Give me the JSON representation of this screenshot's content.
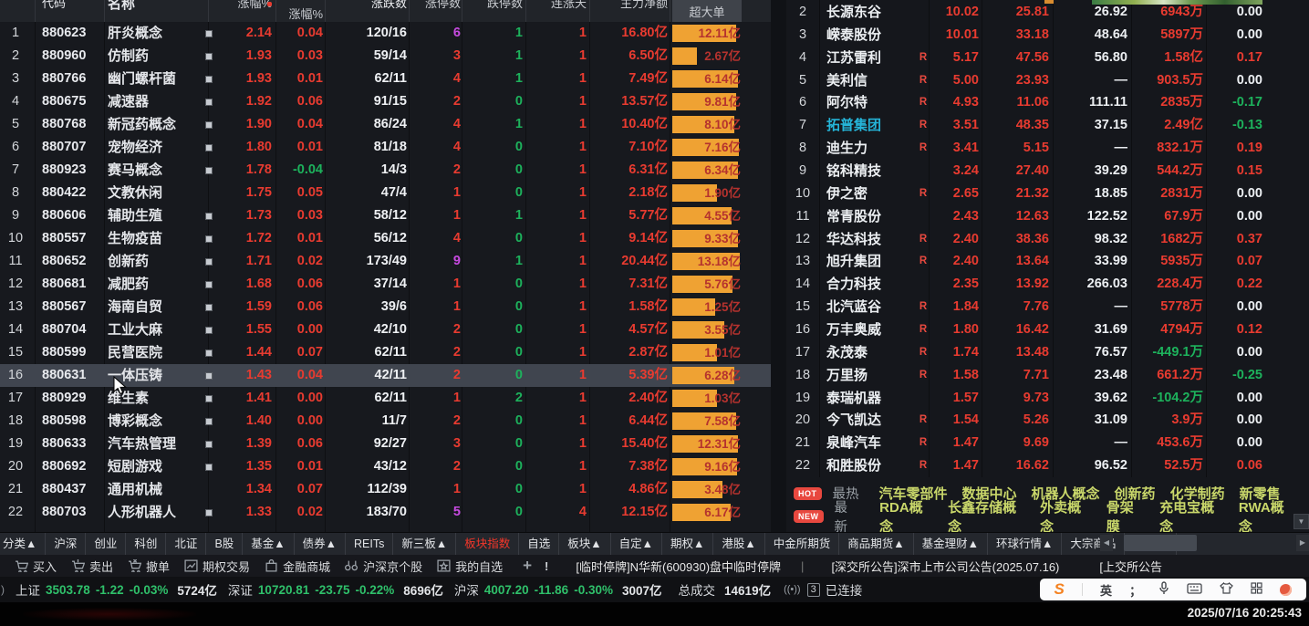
{
  "colors": {
    "red": "#e83b30",
    "green": "#1db25c",
    "purple": "#c74ae0",
    "cyan": "#25b4d8",
    "bar_orange": "#efa233",
    "tab_active": "#f5372a",
    "hot_link": "#c9d76a"
  },
  "left_table": {
    "headers": [
      {
        "label": "代码",
        "cls": "lc-code",
        "cut": true
      },
      {
        "label": "名称",
        "cls": "lc-name",
        "cut": true
      },
      {
        "label": "涨幅%",
        "cls": "lc-p1",
        "cut": true,
        "dot": true
      },
      {
        "label": "涨幅%",
        "cls": "lc-p2",
        "cut": false
      },
      {
        "label": "涨跌数",
        "cls": "lc-ratio",
        "cut": true
      },
      {
        "label": "涨停数",
        "cls": "lc-c1",
        "cut": true
      },
      {
        "label": "跌停数",
        "cls": "lc-c2",
        "cut": true
      },
      {
        "label": "连涨天",
        "cls": "lc-c3",
        "cut": true
      },
      {
        "label": "主力净额",
        "cls": "lc-main",
        "cut": true
      },
      {
        "label": "超大单",
        "cls": "lc-bar",
        "cut": false,
        "mid": true
      }
    ],
    "rows": [
      {
        "seq": "1",
        "code": "880623",
        "name": "肝炎概念",
        "mk": 1,
        "p1": "2.14",
        "p2": "0.04",
        "p2c": "red",
        "ratio": "120/16",
        "c1": "6",
        "c1c": "purple",
        "c2": "1",
        "c3": "1",
        "main": "16.80亿",
        "bar": "12.11亿",
        "bw": 70,
        "hl": false
      },
      {
        "seq": "2",
        "code": "880960",
        "name": "仿制药",
        "mk": 1,
        "p1": "1.93",
        "p2": "0.03",
        "p2c": "red",
        "ratio": "59/14",
        "c1": "3",
        "c1c": "red",
        "c2": "1",
        "c3": "1",
        "main": "6.50亿",
        "bar": "2.67亿",
        "bw": 27,
        "hl": false
      },
      {
        "seq": "3",
        "code": "880766",
        "name": "幽门螺杆菌",
        "mk": 1,
        "p1": "1.93",
        "p2": "0.01",
        "p2c": "red",
        "ratio": "62/11",
        "c1": "4",
        "c1c": "red",
        "c2": "1",
        "c3": "1",
        "main": "7.49亿",
        "bar": "6.14亿",
        "bw": 72,
        "hl": false
      },
      {
        "seq": "4",
        "code": "880675",
        "name": "减速器",
        "mk": 1,
        "p1": "1.92",
        "p2": "0.06",
        "p2c": "red",
        "ratio": "91/15",
        "c1": "2",
        "c1c": "red",
        "c2": "0",
        "c3": "1",
        "main": "13.57亿",
        "bar": "9.81亿",
        "bw": 70,
        "hl": false
      },
      {
        "seq": "5",
        "code": "880768",
        "name": "新冠药概念",
        "mk": 1,
        "p1": "1.90",
        "p2": "0.04",
        "p2c": "red",
        "ratio": "86/24",
        "c1": "4",
        "c1c": "red",
        "c2": "1",
        "c3": "1",
        "main": "10.40亿",
        "bar": "8.10亿",
        "bw": 68,
        "hl": false
      },
      {
        "seq": "6",
        "code": "880707",
        "name": "宠物经济",
        "mk": 1,
        "p1": "1.80",
        "p2": "0.01",
        "p2c": "red",
        "ratio": "81/18",
        "c1": "4",
        "c1c": "red",
        "c2": "0",
        "c3": "1",
        "main": "7.10亿",
        "bar": "7.16亿",
        "bw": 73,
        "hl": false
      },
      {
        "seq": "7",
        "code": "880923",
        "name": "赛马概念",
        "mk": 1,
        "p1": "1.78",
        "p2": "-0.04",
        "p2c": "green",
        "ratio": "14/3",
        "c1": "2",
        "c1c": "red",
        "c2": "0",
        "c3": "1",
        "main": "6.31亿",
        "bar": "6.34亿",
        "bw": 72,
        "hl": false
      },
      {
        "seq": "8",
        "code": "880422",
        "name": "文教休闲",
        "mk": 0,
        "p1": "1.75",
        "p2": "0.05",
        "p2c": "red",
        "ratio": "47/4",
        "c1": "1",
        "c1c": "red",
        "c2": "0",
        "c3": "1",
        "main": "2.18亿",
        "bar": "1.90亿",
        "bw": 49,
        "hl": false
      },
      {
        "seq": "9",
        "code": "880606",
        "name": "辅助生殖",
        "mk": 1,
        "p1": "1.73",
        "p2": "0.03",
        "p2c": "red",
        "ratio": "58/12",
        "c1": "1",
        "c1c": "red",
        "c2": "1",
        "c3": "1",
        "main": "5.77亿",
        "bar": "4.55亿",
        "bw": 65,
        "hl": false
      },
      {
        "seq": "10",
        "code": "880557",
        "name": "生物疫苗",
        "mk": 1,
        "p1": "1.72",
        "p2": "0.01",
        "p2c": "red",
        "ratio": "56/12",
        "c1": "4",
        "c1c": "red",
        "c2": "0",
        "c3": "1",
        "main": "9.14亿",
        "bar": "9.33亿",
        "bw": 72,
        "hl": false
      },
      {
        "seq": "11",
        "code": "880652",
        "name": "创新药",
        "mk": 1,
        "p1": "1.71",
        "p2": "0.02",
        "p2c": "red",
        "ratio": "173/49",
        "c1": "9",
        "c1c": "purple",
        "c2": "1",
        "c3": "1",
        "main": "20.44亿",
        "bar": "13.18亿",
        "bw": 74,
        "hl": false
      },
      {
        "seq": "12",
        "code": "880681",
        "name": "减肥药",
        "mk": 1,
        "p1": "1.68",
        "p2": "0.06",
        "p2c": "red",
        "ratio": "37/14",
        "c1": "1",
        "c1c": "red",
        "c2": "0",
        "c3": "1",
        "main": "7.31亿",
        "bar": "5.76亿",
        "bw": 66,
        "hl": false
      },
      {
        "seq": "13",
        "code": "880567",
        "name": "海南自贸",
        "mk": 1,
        "p1": "1.59",
        "p2": "0.06",
        "p2c": "red",
        "ratio": "39/6",
        "c1": "1",
        "c1c": "red",
        "c2": "0",
        "c3": "1",
        "main": "1.58亿",
        "bar": "1.25亿",
        "bw": 47,
        "hl": false
      },
      {
        "seq": "14",
        "code": "880704",
        "name": "工业大麻",
        "mk": 1,
        "p1": "1.55",
        "p2": "0.00",
        "p2c": "red",
        "ratio": "42/10",
        "c1": "2",
        "c1c": "red",
        "c2": "0",
        "c3": "1",
        "main": "4.57亿",
        "bar": "3.55亿",
        "bw": 57,
        "hl": false
      },
      {
        "seq": "15",
        "code": "880599",
        "name": "民营医院",
        "mk": 1,
        "p1": "1.44",
        "p2": "0.07",
        "p2c": "red",
        "ratio": "62/11",
        "c1": "2",
        "c1c": "red",
        "c2": "0",
        "c3": "1",
        "main": "2.87亿",
        "bar": "1.01亿",
        "bw": 49,
        "hl": false
      },
      {
        "seq": "16",
        "code": "880631",
        "name": "一体压铸",
        "mk": 1,
        "p1": "1.43",
        "p2": "0.04",
        "p2c": "red",
        "ratio": "42/11",
        "c1": "2",
        "c1c": "red",
        "c2": "0",
        "c3": "1",
        "main": "5.39亿",
        "bar": "6.28亿",
        "bw": 68,
        "hl": true
      },
      {
        "seq": "17",
        "code": "880929",
        "name": "维生素",
        "mk": 1,
        "p1": "1.41",
        "p2": "0.00",
        "p2c": "red",
        "ratio": "62/11",
        "c1": "1",
        "c1c": "red",
        "c2": "2",
        "c3": "1",
        "main": "2.40亿",
        "bar": "1.03亿",
        "bw": 49,
        "hl": false
      },
      {
        "seq": "18",
        "code": "880598",
        "name": "博彩概念",
        "mk": 1,
        "p1": "1.40",
        "p2": "0.00",
        "p2c": "red",
        "ratio": "11/7",
        "c1": "2",
        "c1c": "red",
        "c2": "0",
        "c3": "1",
        "main": "6.44亿",
        "bar": "7.58亿",
        "bw": 70,
        "hl": false
      },
      {
        "seq": "19",
        "code": "880633",
        "name": "汽车热管理",
        "mk": 1,
        "p1": "1.39",
        "p2": "0.06",
        "p2c": "red",
        "ratio": "92/27",
        "c1": "3",
        "c1c": "red",
        "c2": "0",
        "c3": "1",
        "main": "15.40亿",
        "bar": "12.31亿",
        "bw": 72,
        "hl": false
      },
      {
        "seq": "20",
        "code": "880692",
        "name": "短剧游戏",
        "mk": 1,
        "p1": "1.35",
        "p2": "0.01",
        "p2c": "red",
        "ratio": "43/12",
        "c1": "2",
        "c1c": "red",
        "c2": "0",
        "c3": "1",
        "main": "7.38亿",
        "bar": "9.16亿",
        "bw": 71,
        "hl": false
      },
      {
        "seq": "21",
        "code": "880437",
        "name": "通用机械",
        "mk": 0,
        "p1": "1.34",
        "p2": "0.07",
        "p2c": "red",
        "ratio": "112/39",
        "c1": "1",
        "c1c": "red",
        "c2": "0",
        "c3": "1",
        "main": "4.86亿",
        "bar": "3.48亿",
        "bw": 55,
        "hl": false
      },
      {
        "seq": "22",
        "code": "880703",
        "name": "人形机器人",
        "mk": 1,
        "p1": "1.33",
        "p2": "0.02",
        "p2c": "red",
        "ratio": "183/70",
        "c1": "5",
        "c1c": "purple",
        "c2": "0",
        "c3": "4",
        "main": "12.15亿",
        "bar": "6.17亿",
        "bw": 64,
        "hl": false
      }
    ]
  },
  "right_table": {
    "rows": [
      {
        "seq": "2",
        "name": "长源东谷",
        "nc": "white",
        "r": 0,
        "p": "10.02",
        "v2": "25.81",
        "v3": "26.92",
        "main": "6943万",
        "mc": "red",
        "v5": "0.00",
        "v5c": "white"
      },
      {
        "seq": "3",
        "name": "嵘泰股份",
        "nc": "white",
        "r": 0,
        "p": "10.01",
        "v2": "33.18",
        "v3": "48.64",
        "main": "5897万",
        "mc": "red",
        "v5": "0.00",
        "v5c": "white"
      },
      {
        "seq": "4",
        "name": "江苏雷利",
        "nc": "white",
        "r": 1,
        "p": "5.17",
        "v2": "47.56",
        "v3": "56.80",
        "main": "1.58亿",
        "mc": "red",
        "v5": "0.17",
        "v5c": "red"
      },
      {
        "seq": "5",
        "name": "美利信",
        "nc": "white",
        "r": 1,
        "p": "5.00",
        "v2": "23.93",
        "v3": "—",
        "main": "903.5万",
        "mc": "red",
        "v5": "0.00",
        "v5c": "white"
      },
      {
        "seq": "6",
        "name": "阿尔特",
        "nc": "white",
        "r": 1,
        "p": "4.93",
        "v2": "11.06",
        "v3": "111.11",
        "main": "2835万",
        "mc": "red",
        "v5": "-0.17",
        "v5c": "green"
      },
      {
        "seq": "7",
        "name": "拓普集团",
        "nc": "cyan",
        "r": 1,
        "p": "3.51",
        "v2": "48.35",
        "v3": "37.15",
        "main": "2.49亿",
        "mc": "red",
        "v5": "-0.13",
        "v5c": "green"
      },
      {
        "seq": "8",
        "name": "迪生力",
        "nc": "white",
        "r": 1,
        "p": "3.41",
        "v2": "5.15",
        "v3": "—",
        "main": "832.1万",
        "mc": "red",
        "v5": "0.19",
        "v5c": "red"
      },
      {
        "seq": "9",
        "name": "铭科精技",
        "nc": "white",
        "r": 0,
        "p": "3.24",
        "v2": "27.40",
        "v3": "39.29",
        "main": "544.2万",
        "mc": "red",
        "v5": "0.15",
        "v5c": "red"
      },
      {
        "seq": "10",
        "name": "伊之密",
        "nc": "white",
        "r": 1,
        "p": "2.65",
        "v2": "21.32",
        "v3": "18.85",
        "main": "2831万",
        "mc": "red",
        "v5": "0.00",
        "v5c": "white"
      },
      {
        "seq": "11",
        "name": "常青股份",
        "nc": "white",
        "r": 0,
        "p": "2.43",
        "v2": "12.63",
        "v3": "122.52",
        "main": "67.9万",
        "mc": "red",
        "v5": "0.00",
        "v5c": "white"
      },
      {
        "seq": "12",
        "name": "华达科技",
        "nc": "white",
        "r": 1,
        "p": "2.40",
        "v2": "38.36",
        "v3": "98.32",
        "main": "1682万",
        "mc": "red",
        "v5": "0.37",
        "v5c": "red"
      },
      {
        "seq": "13",
        "name": "旭升集团",
        "nc": "white",
        "r": 1,
        "p": "2.40",
        "v2": "13.64",
        "v3": "33.99",
        "main": "5935万",
        "mc": "red",
        "v5": "0.07",
        "v5c": "red"
      },
      {
        "seq": "14",
        "name": "合力科技",
        "nc": "white",
        "r": 0,
        "p": "2.35",
        "v2": "13.92",
        "v3": "266.03",
        "main": "228.4万",
        "mc": "red",
        "v5": "0.22",
        "v5c": "red"
      },
      {
        "seq": "15",
        "name": "北汽蓝谷",
        "nc": "white",
        "r": 1,
        "p": "1.84",
        "v2": "7.76",
        "v3": "—",
        "main": "5778万",
        "mc": "red",
        "v5": "0.00",
        "v5c": "white"
      },
      {
        "seq": "16",
        "name": "万丰奥威",
        "nc": "white",
        "r": 1,
        "p": "1.80",
        "v2": "16.42",
        "v3": "31.69",
        "main": "4794万",
        "mc": "red",
        "v5": "0.12",
        "v5c": "red"
      },
      {
        "seq": "17",
        "name": "永茂泰",
        "nc": "white",
        "r": 1,
        "p": "1.74",
        "v2": "13.48",
        "v3": "76.57",
        "main": "-449.1万",
        "mc": "green",
        "v5": "0.00",
        "v5c": "white"
      },
      {
        "seq": "18",
        "name": "万里扬",
        "nc": "white",
        "r": 1,
        "p": "1.58",
        "v2": "7.71",
        "v3": "23.48",
        "main": "661.2万",
        "mc": "red",
        "v5": "-0.25",
        "v5c": "green"
      },
      {
        "seq": "19",
        "name": "泰瑞机器",
        "nc": "white",
        "r": 0,
        "p": "1.57",
        "v2": "9.73",
        "v3": "39.62",
        "main": "-104.2万",
        "mc": "green",
        "v5": "0.00",
        "v5c": "white"
      },
      {
        "seq": "20",
        "name": "今飞凯达",
        "nc": "white",
        "r": 1,
        "p": "1.54",
        "v2": "5.26",
        "v3": "31.09",
        "main": "3.9万",
        "mc": "red",
        "v5": "0.00",
        "v5c": "white"
      },
      {
        "seq": "21",
        "name": "泉峰汽车",
        "nc": "white",
        "r": 1,
        "p": "1.47",
        "v2": "9.69",
        "v3": "—",
        "main": "453.6万",
        "mc": "red",
        "v5": "0.00",
        "v5c": "white"
      },
      {
        "seq": "22",
        "name": "和胜股份",
        "nc": "white",
        "r": 1,
        "p": "1.47",
        "v2": "16.62",
        "v3": "96.52",
        "main": "52.5万",
        "mc": "red",
        "v5": "0.06",
        "v5c": "red"
      }
    ]
  },
  "hot": {
    "badge": "HOT",
    "label": "最热",
    "links": [
      "汽车零部件",
      "数据中心",
      "机器人概念",
      "创新药",
      "化学制药",
      "新零售"
    ]
  },
  "newest": {
    "badge": "NEW",
    "label": "最新",
    "links": [
      "RDA概念",
      "长鑫存储概念",
      "外卖概念",
      "骨架膜",
      "充电宝概念",
      "RWA概念"
    ]
  },
  "tabs": {
    "items": [
      {
        "label": "分类▲"
      },
      {
        "label": "沪深"
      },
      {
        "label": "创业"
      },
      {
        "label": "科创"
      },
      {
        "label": "北证"
      },
      {
        "label": "B股"
      },
      {
        "label": "基金▲"
      },
      {
        "label": "债券▲"
      },
      {
        "label": "REITs"
      },
      {
        "label": "新三板▲"
      },
      {
        "label": "板块指数",
        "active": true
      },
      {
        "label": "自选"
      },
      {
        "label": "板块▲"
      },
      {
        "label": "自定▲"
      },
      {
        "label": "期权▲"
      },
      {
        "label": "港股▲"
      },
      {
        "label": "中金所期货"
      },
      {
        "label": "商品期货▲"
      },
      {
        "label": "基金理财▲"
      },
      {
        "label": "环球行情▲"
      },
      {
        "label": "大宗商品"
      },
      {
        "label": "更多▲"
      }
    ]
  },
  "toolbar": {
    "buttons": [
      {
        "icon": "cart-buy-icon",
        "label": "买入"
      },
      {
        "icon": "cart-sell-icon",
        "label": "卖出"
      },
      {
        "icon": "cart-cancel-icon",
        "label": "撤单"
      },
      {
        "icon": "chart-icon",
        "label": "期权交易"
      },
      {
        "icon": "bag-icon",
        "label": "金融商城"
      },
      {
        "icon": "binoculars-icon",
        "label": "沪深京个股"
      },
      {
        "icon": "star-box-icon",
        "label": "我的自选"
      }
    ],
    "plus": "+",
    "alert": "!",
    "ticker1": "[临时停牌]N华新(600930)盘中临时停牌",
    "ticker_sep": "|",
    "ticker2": "[深交所公告]深市上市公司公告(2025.07.16)",
    "ticker3": "[上交所公告"
  },
  "status": {
    "indices": [
      {
        "name": "上证",
        "value": "3503.78",
        "chg": "-1.22",
        "pct": "-0.03%",
        "vol": "5724亿"
      },
      {
        "name": "深证",
        "value": "10720.81",
        "chg": "-23.75",
        "pct": "-0.22%",
        "vol": "8696亿"
      },
      {
        "name": "沪深",
        "value": "4007.20",
        "chg": "-11.86",
        "pct": "-0.30%",
        "vol": "3007亿"
      }
    ],
    "total_label": "总成交",
    "total_value": "14619亿",
    "conn_signal": "((•))",
    "conn_box": "3",
    "conn_label": "已连接",
    "ime": {
      "brand": "S",
      "lang": "英",
      "punct": "；"
    }
  },
  "footer": {
    "timestamp": "2025/07/16 20:25:43"
  }
}
